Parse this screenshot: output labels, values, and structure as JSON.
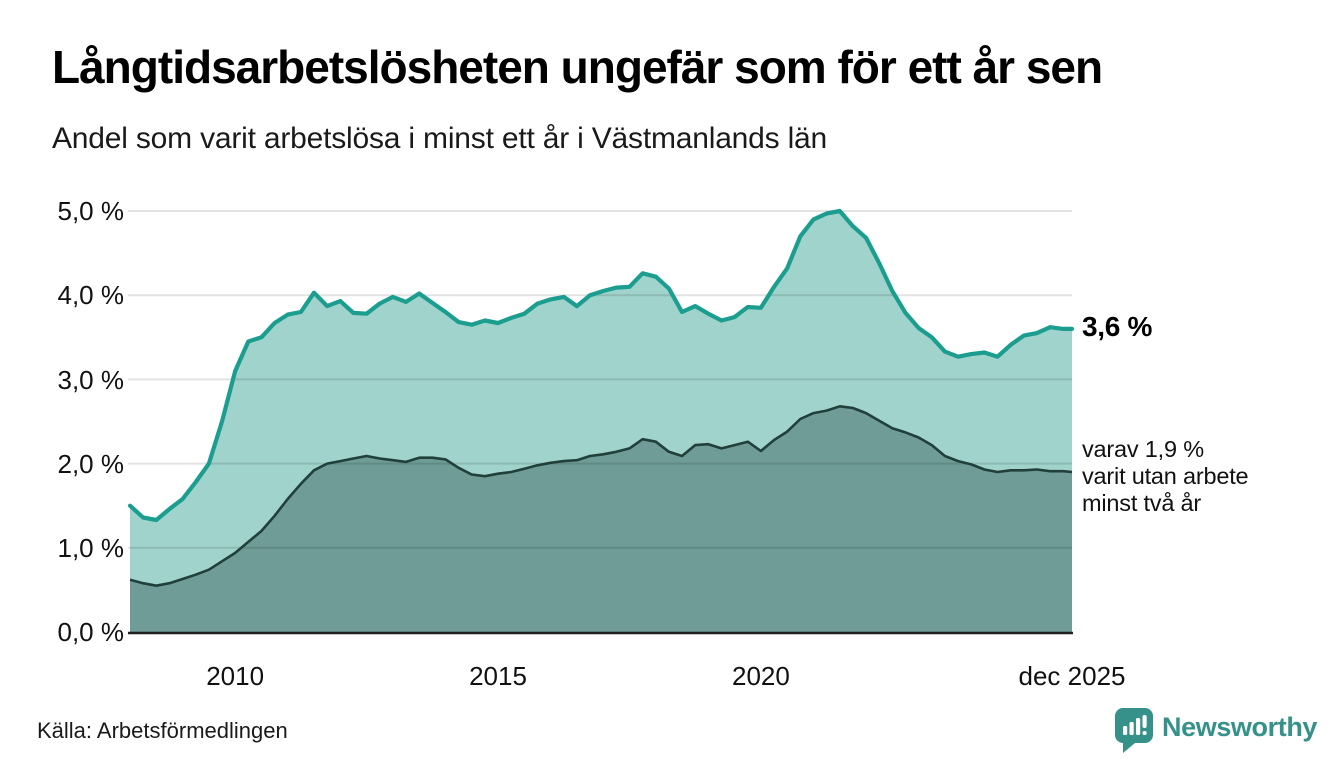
{
  "title": "Långtidsarbetslösheten ungefär som för ett år sen",
  "subtitle": "Andel som varit arbetslösa i minst ett år i Västmanlands län",
  "source": "Källa: Arbetsförmedlingen",
  "branding": {
    "name": "Newsworthy",
    "color": "#35918a"
  },
  "annotations": {
    "latest_total_label": "3,6 %",
    "sub_lines": [
      "varav 1,9 %",
      "varit utan arbete",
      "minst två år"
    ]
  },
  "axes": {
    "y_ticks": [
      "5,0 %",
      "4,0 %",
      "3,0 %",
      "2,0 %",
      "1,0 %",
      "0,0 %"
    ],
    "x_ticks": [
      {
        "label": "2010",
        "t": 2010
      },
      {
        "label": "2015",
        "t": 2015
      },
      {
        "label": "2020",
        "t": 2020
      },
      {
        "label": "dec 2025",
        "t": 2025.917
      }
    ]
  },
  "colors": {
    "teal_line": "#1b9e8f",
    "light_fill": "#a0d3cb",
    "dark_fill": "#6f9c96",
    "dark_line": "#21403c",
    "grid": "rgba(0,0,0,0.11)",
    "axis": "#1f1f1f"
  },
  "chart_data": {
    "type": "area",
    "title": "Långtidsarbetslösheten ungefär som för ett år sen",
    "subtitle": "Andel som varit arbetslösa i minst ett år i Västmanlands län",
    "unit": "%",
    "x_range": [
      2008.0,
      2025.917
    ],
    "ylim": [
      0,
      5.25
    ],
    "y_ticks_pct": [
      0,
      1,
      2,
      3,
      4,
      5
    ],
    "grid": true,
    "legend_position": "right-edge-labels",
    "end_labels": {
      "total": "3,6 %",
      "subset": "varav 1,9 % varit utan arbete minst två år"
    },
    "series": [
      {
        "name": "Andel som varit arbetslösa i minst ett år",
        "latest_value": 3.6,
        "points": [
          [
            2008.0,
            1.5
          ],
          [
            2008.25,
            1.36
          ],
          [
            2008.5,
            1.33
          ],
          [
            2008.75,
            1.46
          ],
          [
            2009.0,
            1.58
          ],
          [
            2009.25,
            1.78
          ],
          [
            2009.5,
            2.0
          ],
          [
            2009.75,
            2.5
          ],
          [
            2010.0,
            3.1
          ],
          [
            2010.25,
            3.45
          ],
          [
            2010.5,
            3.5
          ],
          [
            2010.75,
            3.67
          ],
          [
            2011.0,
            3.77
          ],
          [
            2011.25,
            3.8
          ],
          [
            2011.5,
            4.03
          ],
          [
            2011.75,
            3.87
          ],
          [
            2012.0,
            3.93
          ],
          [
            2012.25,
            3.79
          ],
          [
            2012.5,
            3.78
          ],
          [
            2012.75,
            3.9
          ],
          [
            2013.0,
            3.98
          ],
          [
            2013.25,
            3.92
          ],
          [
            2013.5,
            4.02
          ],
          [
            2013.75,
            3.91
          ],
          [
            2014.0,
            3.8
          ],
          [
            2014.25,
            3.68
          ],
          [
            2014.5,
            3.65
          ],
          [
            2014.75,
            3.7
          ],
          [
            2015.0,
            3.67
          ],
          [
            2015.25,
            3.73
          ],
          [
            2015.5,
            3.78
          ],
          [
            2015.75,
            3.9
          ],
          [
            2016.0,
            3.95
          ],
          [
            2016.25,
            3.98
          ],
          [
            2016.5,
            3.87
          ],
          [
            2016.75,
            4.0
          ],
          [
            2017.0,
            4.05
          ],
          [
            2017.25,
            4.09
          ],
          [
            2017.5,
            4.1
          ],
          [
            2017.75,
            4.26
          ],
          [
            2018.0,
            4.22
          ],
          [
            2018.25,
            4.08
          ],
          [
            2018.5,
            3.8
          ],
          [
            2018.75,
            3.87
          ],
          [
            2019.0,
            3.78
          ],
          [
            2019.25,
            3.7
          ],
          [
            2019.5,
            3.74
          ],
          [
            2019.75,
            3.86
          ],
          [
            2020.0,
            3.85
          ],
          [
            2020.25,
            4.1
          ],
          [
            2020.5,
            4.32
          ],
          [
            2020.75,
            4.7
          ],
          [
            2021.0,
            4.9
          ],
          [
            2021.25,
            4.97
          ],
          [
            2021.5,
            5.0
          ],
          [
            2021.75,
            4.82
          ],
          [
            2022.0,
            4.68
          ],
          [
            2022.25,
            4.38
          ],
          [
            2022.5,
            4.05
          ],
          [
            2022.75,
            3.79
          ],
          [
            2023.0,
            3.61
          ],
          [
            2023.25,
            3.5
          ],
          [
            2023.5,
            3.33
          ],
          [
            2023.75,
            3.27
          ],
          [
            2024.0,
            3.3
          ],
          [
            2024.25,
            3.32
          ],
          [
            2024.5,
            3.27
          ],
          [
            2024.75,
            3.41
          ],
          [
            2025.0,
            3.52
          ],
          [
            2025.25,
            3.55
          ],
          [
            2025.5,
            3.62
          ],
          [
            2025.75,
            3.6
          ],
          [
            2025.917,
            3.6
          ]
        ]
      },
      {
        "name": "varav varit utan arbete minst två år",
        "latest_value": 1.9,
        "points": [
          [
            2008.0,
            0.62
          ],
          [
            2008.25,
            0.58
          ],
          [
            2008.5,
            0.55
          ],
          [
            2008.75,
            0.58
          ],
          [
            2009.0,
            0.63
          ],
          [
            2009.25,
            0.68
          ],
          [
            2009.5,
            0.74
          ],
          [
            2009.75,
            0.84
          ],
          [
            2010.0,
            0.94
          ],
          [
            2010.25,
            1.07
          ],
          [
            2010.5,
            1.2
          ],
          [
            2010.75,
            1.38
          ],
          [
            2011.0,
            1.58
          ],
          [
            2011.25,
            1.76
          ],
          [
            2011.5,
            1.92
          ],
          [
            2011.75,
            2.0
          ],
          [
            2012.0,
            2.03
          ],
          [
            2012.25,
            2.06
          ],
          [
            2012.5,
            2.09
          ],
          [
            2012.75,
            2.06
          ],
          [
            2013.0,
            2.04
          ],
          [
            2013.25,
            2.02
          ],
          [
            2013.5,
            2.07
          ],
          [
            2013.75,
            2.07
          ],
          [
            2014.0,
            2.05
          ],
          [
            2014.25,
            1.95
          ],
          [
            2014.5,
            1.87
          ],
          [
            2014.75,
            1.85
          ],
          [
            2015.0,
            1.88
          ],
          [
            2015.25,
            1.9
          ],
          [
            2015.5,
            1.94
          ],
          [
            2015.75,
            1.98
          ],
          [
            2016.0,
            2.01
          ],
          [
            2016.25,
            2.03
          ],
          [
            2016.5,
            2.04
          ],
          [
            2016.75,
            2.09
          ],
          [
            2017.0,
            2.11
          ],
          [
            2017.25,
            2.14
          ],
          [
            2017.5,
            2.18
          ],
          [
            2017.75,
            2.29
          ],
          [
            2018.0,
            2.26
          ],
          [
            2018.25,
            2.14
          ],
          [
            2018.5,
            2.09
          ],
          [
            2018.75,
            2.22
          ],
          [
            2019.0,
            2.23
          ],
          [
            2019.25,
            2.18
          ],
          [
            2019.5,
            2.22
          ],
          [
            2019.75,
            2.26
          ],
          [
            2020.0,
            2.15
          ],
          [
            2020.25,
            2.28
          ],
          [
            2020.5,
            2.38
          ],
          [
            2020.75,
            2.53
          ],
          [
            2021.0,
            2.6
          ],
          [
            2021.25,
            2.63
          ],
          [
            2021.5,
            2.68
          ],
          [
            2021.75,
            2.66
          ],
          [
            2022.0,
            2.6
          ],
          [
            2022.25,
            2.51
          ],
          [
            2022.5,
            2.42
          ],
          [
            2022.75,
            2.37
          ],
          [
            2023.0,
            2.31
          ],
          [
            2023.25,
            2.22
          ],
          [
            2023.5,
            2.09
          ],
          [
            2023.75,
            2.03
          ],
          [
            2024.0,
            1.99
          ],
          [
            2024.25,
            1.93
          ],
          [
            2024.5,
            1.9
          ],
          [
            2024.75,
            1.92
          ],
          [
            2025.0,
            1.92
          ],
          [
            2025.25,
            1.93
          ],
          [
            2025.5,
            1.91
          ],
          [
            2025.75,
            1.91
          ],
          [
            2025.917,
            1.9
          ]
        ]
      }
    ]
  }
}
